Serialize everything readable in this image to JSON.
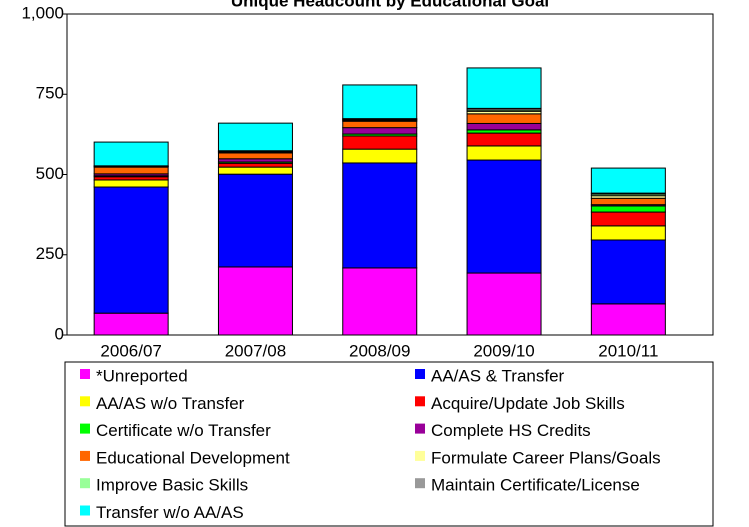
{
  "chart_data": {
    "type": "bar",
    "stacked": true,
    "title": "Unique Headcount by Educational Goal",
    "categories": [
      "2006/07",
      "2007/08",
      "2008/09",
      "2009/10",
      "2010/11"
    ],
    "ylim": [
      0,
      1000
    ],
    "yticks": [
      0,
      250,
      500,
      750,
      {
        "value": 1000,
        "label": "1,000"
      }
    ],
    "series": [
      {
        "name": "*Unreported",
        "color": "#ff00ff",
        "values": [
          68,
          212,
          209,
          193,
          97
        ]
      },
      {
        "name": "AA/AS & Transfer",
        "color": "#0000ff",
        "values": [
          393,
          289,
          327,
          352,
          199
        ]
      },
      {
        "name": "AA/AS w/o Transfer",
        "color": "#ffff00",
        "values": [
          22,
          22,
          43,
          44,
          44
        ]
      },
      {
        "name": "Acquire/Update Job Skills",
        "color": "#ff0000",
        "values": [
          10,
          12,
          41,
          40,
          43
        ]
      },
      {
        "name": "Certificate w/o Transfer",
        "color": "#00ff00",
        "values": [
          3,
          4,
          6,
          10,
          19
        ]
      },
      {
        "name": "Complete HS Credits",
        "color": "#990099",
        "values": [
          6,
          10,
          20,
          20,
          4
        ]
      },
      {
        "name": "Educational Development",
        "color": "#ff6600",
        "values": [
          21,
          18,
          20,
          30,
          20
        ]
      },
      {
        "name": "Formulate Career Plans/Goals",
        "color": "#ffff99",
        "values": [
          2,
          3,
          3,
          8,
          8
        ]
      },
      {
        "name": "Improve Basic Skills",
        "color": "#99ff99",
        "values": [
          1,
          2,
          2,
          4,
          5
        ]
      },
      {
        "name": "Maintain Certificate/License",
        "color": "#999999",
        "values": [
          1,
          2,
          3,
          5,
          3
        ]
      },
      {
        "name": "Transfer w/o AA/AS",
        "color": "#00ffff",
        "values": [
          74,
          86,
          105,
          126,
          78
        ]
      }
    ]
  }
}
